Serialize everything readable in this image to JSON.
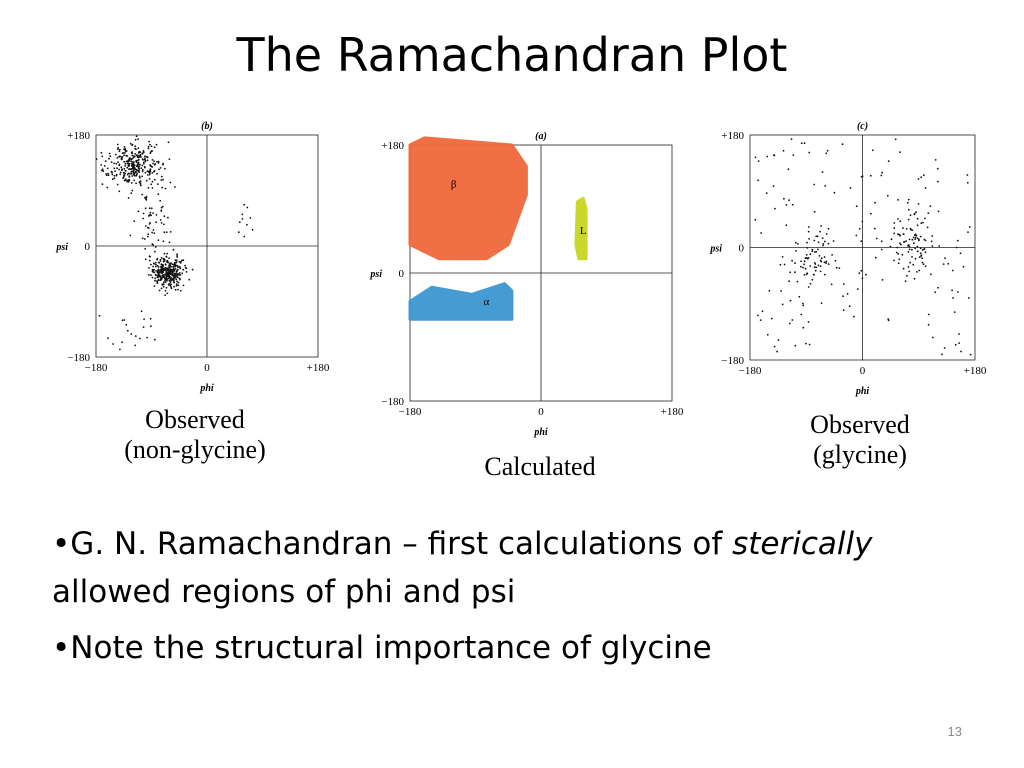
{
  "title": "The Ramachandran Plot",
  "captions": {
    "left": [
      "Observed",
      "(non-glycine)"
    ],
    "center": [
      "Calculated"
    ],
    "right": [
      "Observed",
      "(glycine)"
    ]
  },
  "bullets": [
    {
      "prefix": "•",
      "parts": [
        {
          "text": "G. N. Ramachandran – first calculations of ",
          "italic": false
        },
        {
          "text": "sterically",
          "italic": true
        },
        {
          "text": " allowed regions of phi and psi",
          "italic": false
        }
      ]
    },
    {
      "prefix": "•",
      "parts": [
        {
          "text": "Note the structural importance of glycine",
          "italic": false
        }
      ]
    }
  ],
  "page_number": "13",
  "chart_data": [
    {
      "id": "b",
      "type": "scatter",
      "panel_label": "(b)",
      "xlabel": "phi",
      "ylabel": "psi",
      "xlim": [
        -180,
        180
      ],
      "ylim": [
        -180,
        180
      ],
      "ticks": {
        "x": [
          "−180",
          "0",
          "+180"
        ],
        "y": [
          "+180",
          "0",
          "−180"
        ]
      },
      "color": "#111111",
      "clusters": [
        {
          "region": "beta",
          "phi": -120,
          "psi": 130,
          "sd_phi": 22,
          "sd_psi": 18,
          "n": 320
        },
        {
          "region": "alpha",
          "phi": -63,
          "psi": -42,
          "sd_phi": 12,
          "sd_psi": 12,
          "n": 340
        },
        {
          "region": "bridge",
          "phi": -90,
          "psi": 40,
          "sd_phi": 15,
          "sd_psi": 35,
          "n": 60
        },
        {
          "region": "left-handed",
          "phi": 60,
          "psi": 40,
          "sd_phi": 10,
          "sd_psi": 12,
          "n": 10
        },
        {
          "region": "scattered",
          "phi": -110,
          "psi": -130,
          "sd_phi": 25,
          "sd_psi": 20,
          "n": 20
        }
      ]
    },
    {
      "id": "a",
      "type": "area",
      "panel_label": "(a)",
      "xlabel": "phi",
      "ylabel": "psi",
      "xlim": [
        -180,
        180
      ],
      "ylim": [
        -180,
        180
      ],
      "ticks": {
        "x": [
          "−180",
          "0",
          "+180"
        ],
        "y": [
          "+180",
          "0",
          "−180"
        ]
      },
      "regions": [
        {
          "name": "β",
          "color": "#f0683a",
          "label_at": [
            -120,
            120
          ],
          "polygon": [
            [
              -180,
              180
            ],
            [
              -160,
              190
            ],
            [
              -40,
              180
            ],
            [
              -20,
              150
            ],
            [
              -20,
              110
            ],
            [
              -45,
              40
            ],
            [
              -75,
              20
            ],
            [
              -140,
              20
            ],
            [
              -180,
              40
            ]
          ]
        },
        {
          "name": "α",
          "color": "#3a97d1",
          "label_at": [
            -75,
            -45
          ],
          "polygon": [
            [
              -180,
              -40
            ],
            [
              -150,
              -20
            ],
            [
              -95,
              -30
            ],
            [
              -50,
              -15
            ],
            [
              -40,
              -25
            ],
            [
              -40,
              -65
            ],
            [
              -180,
              -65
            ]
          ]
        },
        {
          "name": "L",
          "color": "#c8d520",
          "label_at": [
            58,
            55
          ],
          "polygon": [
            [
              50,
              100
            ],
            [
              58,
              105
            ],
            [
              62,
              90
            ],
            [
              62,
              20
            ],
            [
              52,
              20
            ],
            [
              48,
              40
            ]
          ]
        }
      ]
    },
    {
      "id": "c",
      "type": "scatter",
      "panel_label": "(c)",
      "xlabel": "phi",
      "ylabel": "psi",
      "xlim": [
        -180,
        180
      ],
      "ylim": [
        -180,
        180
      ],
      "ticks": {
        "x": [
          "−180",
          "0",
          "+180"
        ],
        "y": [
          "+180",
          "0",
          "−180"
        ]
      },
      "color": "#111111",
      "clusters": [
        {
          "region": "right-handed",
          "phi": 80,
          "psi": 10,
          "sd_phi": 20,
          "sd_psi": 25,
          "n": 90
        },
        {
          "region": "left-handed",
          "phi": -80,
          "psi": -15,
          "sd_phi": 20,
          "sd_psi": 25,
          "n": 70
        },
        {
          "region": "scattered",
          "phi": 0,
          "psi": 0,
          "sd_phi": 105,
          "sd_psi": 105,
          "n": 150
        }
      ]
    }
  ]
}
